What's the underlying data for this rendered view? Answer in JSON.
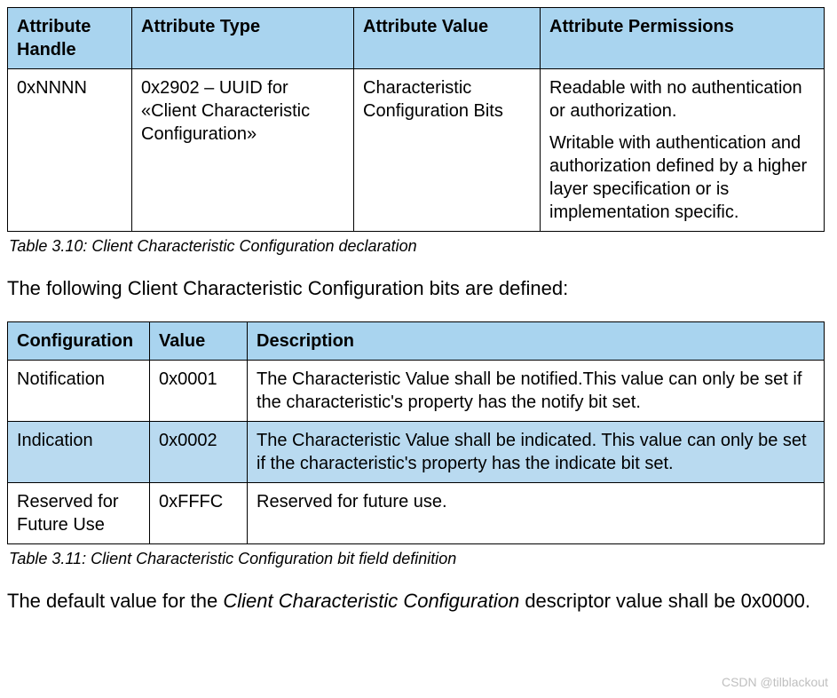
{
  "table1": {
    "columns": [
      "Attribute Handle",
      "Attribute Type",
      "Attribute Value",
      "Attribute Permissions"
    ],
    "row": {
      "handle": "0xNNNN",
      "type": "0x2902 – UUID for «Client Characteristic Configuration»",
      "value": "Characteristic Configuration Bits",
      "perm1": "Readable with no authentication or authorization.",
      "perm2": "Writable with authentication and authorization defined by a higher layer specification or is implementation specific."
    },
    "col_widths": [
      "140px",
      "250px",
      "210px",
      "320px"
    ],
    "header_bg": "#a9d4ef",
    "caption": "Table 3.10:  Client Characteristic Configuration declaration"
  },
  "para1": "The following Client Characteristic Configuration bits are defined:",
  "table2": {
    "columns": [
      "Configuration",
      "Value",
      "Description"
    ],
    "rows": [
      {
        "cfg": "Notification",
        "val": "0x0001",
        "desc": "The Characteristic Value shall be notified.This value can only be set if the characteristic's property has the notify bit set.",
        "hl": false
      },
      {
        "cfg": "Indication",
        "val": "0x0002",
        "desc": "The Characteristic Value shall be indicated. This value can only be set if the characteristic's property has the indicate bit set.",
        "hl": true
      },
      {
        "cfg": "Reserved for Future Use",
        "val": "0xFFFC",
        "desc": "Reserved for future use.",
        "hl": false
      }
    ],
    "col_widths": [
      "160px",
      "110px",
      "650px"
    ],
    "highlight_bg": "#b9daf0",
    "caption": "Table 3.11:  Client Characteristic Configuration bit field definition"
  },
  "para2_pre": "The default value for the ",
  "para2_em": "Client Characteristic Configuration",
  "para2_post": " descriptor value shall be 0x0000.",
  "watermark": "CSDN @tilblackout"
}
